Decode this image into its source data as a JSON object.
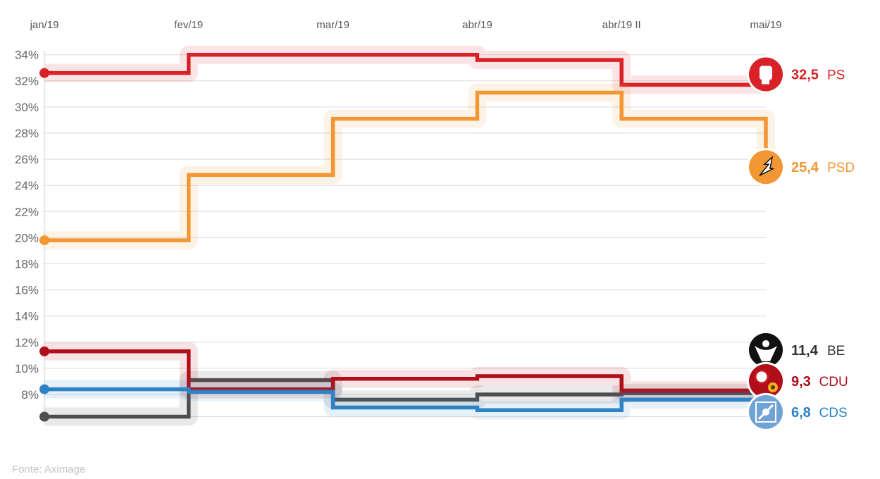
{
  "source": "Fonte: Aximage",
  "chart_data": {
    "type": "line",
    "step": true,
    "categories": [
      "jan/19",
      "fev/19",
      "mar/19",
      "abr/19",
      "abr/19 II",
      "mai/19"
    ],
    "y_ticks": [
      "8%",
      "10%",
      "12%",
      "14%",
      "16%",
      "18%",
      "20%",
      "22%",
      "24%",
      "26%",
      "28%",
      "30%",
      "32%",
      "34%"
    ],
    "ylim": [
      6,
      34
    ],
    "grid": true,
    "series": [
      {
        "name": "PS",
        "value_label": "32,5",
        "color": "#d92228",
        "icon": "fist-icon",
        "values": [
          32.6,
          34.0,
          34.0,
          33.6,
          31.7,
          32.5
        ]
      },
      {
        "name": "PSD",
        "value_label": "25,4",
        "color": "#f29734",
        "icon": "psd-arrow-icon",
        "values": [
          19.8,
          24.8,
          29.1,
          31.1,
          29.1,
          25.4
        ]
      },
      {
        "name": "BE",
        "value_label": "11,4",
        "color": "#4e4e4e",
        "icon": "be-figure-icon",
        "values": [
          6.3,
          9.1,
          7.6,
          8.0,
          8.1,
          11.4
        ]
      },
      {
        "name": "CDU",
        "value_label": "9,3",
        "color": "#b20e1a",
        "icon": "hammer-sickle-icon",
        "values": [
          11.3,
          8.4,
          9.2,
          9.4,
          8.3,
          9.3
        ]
      },
      {
        "name": "CDS",
        "value_label": "6,8",
        "color": "#2e83c4",
        "icon": "cds-emblem-icon",
        "values": [
          8.4,
          8.2,
          7.0,
          6.8,
          7.6,
          6.8
        ]
      }
    ]
  }
}
